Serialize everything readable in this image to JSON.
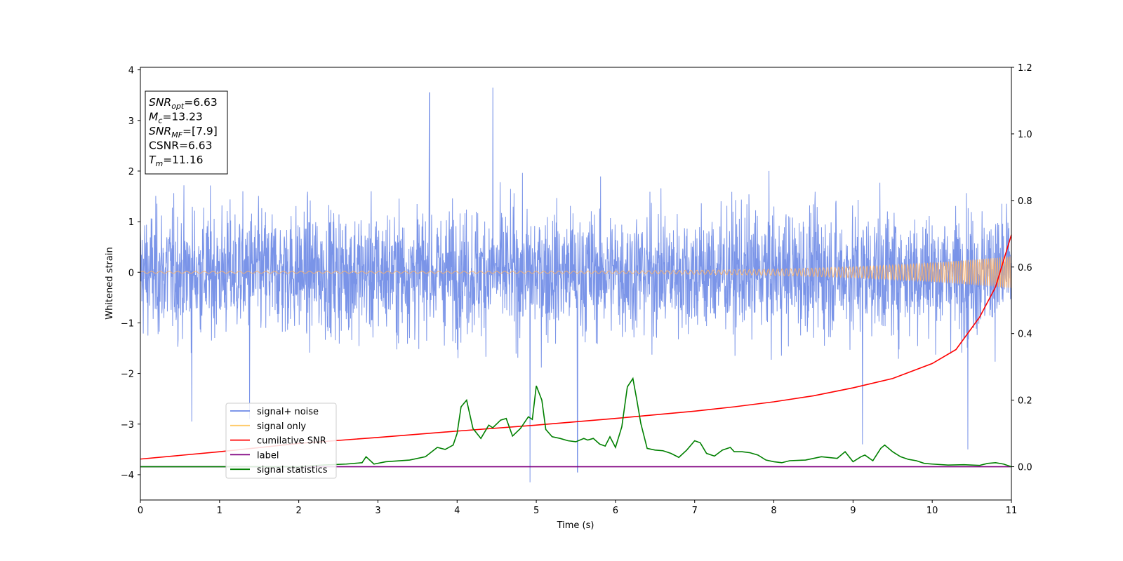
{
  "chart_data": {
    "type": "line",
    "title": "",
    "xlabel": "Time (s)",
    "ylabel": "Whitened strain",
    "xlim": [
      0,
      11
    ],
    "ylim_left": [
      -4.5,
      4.05
    ],
    "ylim_right": [
      -0.1,
      1.2
    ],
    "x_ticks": [
      0,
      1,
      2,
      3,
      4,
      5,
      6,
      7,
      8,
      9,
      10,
      11
    ],
    "y_ticks_left": [
      4,
      3,
      2,
      1,
      0,
      -1,
      -2,
      -3,
      -4
    ],
    "y_tick_labels_left": [
      "4",
      "3",
      "2",
      "1",
      "0",
      "−1",
      "−2",
      "−3",
      "−4"
    ],
    "y_ticks_right": [
      1.2,
      1.0,
      0.8,
      0.6,
      0.4,
      0.2,
      0.0
    ],
    "y_tick_labels_right": [
      "1.2",
      "1.0",
      "0.8",
      "0.6",
      "0.4",
      "0.2",
      "0.0"
    ],
    "grid": false,
    "legend_position": "lower-left",
    "legend": [
      {
        "label": "signal+ noise",
        "color": "#6b88e6"
      },
      {
        "label": "signal only",
        "color": "#ffc966"
      },
      {
        "label": "cumilative SNR",
        "color": "#ff0000"
      },
      {
        "label": "label",
        "color": "#800080"
      },
      {
        "label": "signal statistics",
        "color": "#008000"
      }
    ],
    "info_box": [
      {
        "main": "SNR",
        "sub": "opt",
        "rest": "=6.63"
      },
      {
        "main": "M",
        "sub": "c",
        "rest": "=13.23"
      },
      {
        "main": "SNR",
        "sub": "MF",
        "rest": "=[7.9]"
      },
      {
        "main": "CSNR",
        "sub": "",
        "rest": "=6.63"
      },
      {
        "main": "T",
        "sub": "m",
        "rest": "=11.16"
      }
    ],
    "series": [
      {
        "name": "signal+ noise",
        "axis": "left",
        "color": "#6b88e6",
        "description": "dense noise, amplitude mostly within ±2.3 with peaks up to 3.65 and dips to -4.15",
        "n_points": 3000,
        "typical_amplitude": 2.0,
        "spikes": [
          [
            0.65,
            -2.95
          ],
          [
            4.45,
            3.65
          ],
          [
            4.92,
            -4.15
          ],
          [
            5.52,
            -3.95
          ],
          [
            10.45,
            -3.5
          ],
          [
            3.65,
            3.55
          ],
          [
            1.38,
            -2.9
          ],
          [
            9.12,
            -3.4
          ]
        ]
      },
      {
        "name": "signal only",
        "axis": "left",
        "color": "#ffb366",
        "description": "chirp with amplitude growing from ~0.02 to ~0.32 at t=11",
        "amplitude_start": 0.02,
        "amplitude_end": 0.32
      },
      {
        "name": "cumilative SNR",
        "axis": "right",
        "color": "#ff0000",
        "x": [
          0,
          1,
          2,
          3,
          4,
          5,
          6,
          7,
          7.5,
          8,
          8.5,
          9,
          9.5,
          10,
          10.3,
          10.6,
          10.8,
          11
        ],
        "y": [
          0.023,
          0.045,
          0.07,
          0.088,
          0.107,
          0.125,
          0.145,
          0.167,
          0.18,
          0.195,
          0.213,
          0.237,
          0.265,
          0.31,
          0.352,
          0.45,
          0.54,
          0.697
        ]
      },
      {
        "name": "label",
        "axis": "right",
        "color": "#800080",
        "x": [
          0,
          11
        ],
        "y": [
          0.0,
          0.0
        ]
      },
      {
        "name": "signal statistics",
        "axis": "right",
        "color": "#008000",
        "x": [
          0,
          1,
          2,
          2.3,
          2.6,
          2.8,
          2.85,
          2.95,
          3.1,
          3.4,
          3.6,
          3.75,
          3.85,
          3.95,
          4.0,
          4.05,
          4.12,
          4.2,
          4.3,
          4.4,
          4.45,
          4.55,
          4.62,
          4.7,
          4.8,
          4.9,
          4.95,
          5.0,
          5.07,
          5.12,
          5.2,
          5.3,
          5.4,
          5.5,
          5.6,
          5.65,
          5.72,
          5.8,
          5.87,
          5.93,
          6.0,
          6.08,
          6.15,
          6.22,
          6.27,
          6.32,
          6.4,
          6.5,
          6.6,
          6.7,
          6.8,
          6.9,
          7.0,
          7.07,
          7.15,
          7.25,
          7.35,
          7.45,
          7.5,
          7.6,
          7.7,
          7.8,
          7.9,
          8.0,
          8.1,
          8.2,
          8.4,
          8.6,
          8.8,
          8.9,
          9.0,
          9.1,
          9.15,
          9.25,
          9.35,
          9.4,
          9.5,
          9.6,
          9.7,
          9.8,
          9.9,
          10.0,
          10.2,
          10.4,
          10.6,
          10.7,
          10.8,
          10.9,
          11.0
        ],
        "y": [
          0.0,
          0.0,
          0.0,
          0.005,
          0.008,
          0.012,
          0.03,
          0.008,
          0.015,
          0.02,
          0.03,
          0.058,
          0.052,
          0.065,
          0.1,
          0.18,
          0.2,
          0.115,
          0.085,
          0.125,
          0.117,
          0.14,
          0.145,
          0.092,
          0.115,
          0.15,
          0.142,
          0.243,
          0.2,
          0.112,
          0.09,
          0.085,
          0.078,
          0.075,
          0.085,
          0.08,
          0.085,
          0.068,
          0.062,
          0.09,
          0.058,
          0.12,
          0.24,
          0.265,
          0.2,
          0.13,
          0.055,
          0.05,
          0.048,
          0.04,
          0.028,
          0.05,
          0.078,
          0.072,
          0.04,
          0.032,
          0.05,
          0.058,
          0.045,
          0.045,
          0.042,
          0.035,
          0.02,
          0.015,
          0.012,
          0.018,
          0.02,
          0.03,
          0.025,
          0.045,
          0.015,
          0.03,
          0.035,
          0.018,
          0.055,
          0.065,
          0.045,
          0.03,
          0.022,
          0.018,
          0.01,
          0.008,
          0.005,
          0.006,
          0.004,
          0.01,
          0.012,
          0.008,
          0.0
        ]
      }
    ]
  }
}
